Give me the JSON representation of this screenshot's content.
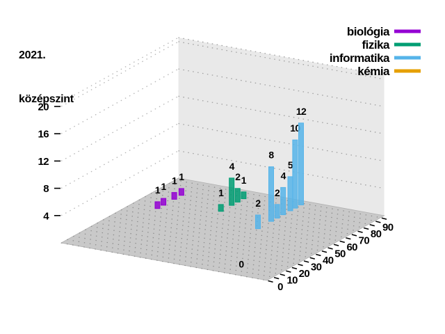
{
  "header": {
    "line1": "2021.",
    "line2": "középszint"
  },
  "chart_data": {
    "type": "bar",
    "projection": "3d",
    "title": "2021. középszint",
    "legend_position": "top-right",
    "score_axis": {
      "ticks": [
        0,
        10,
        20,
        30,
        40,
        50,
        60,
        70,
        80,
        90
      ],
      "minor_step": 5,
      "range": [
        0,
        98
      ]
    },
    "count_axis": {
      "ticks": [
        4,
        8,
        12,
        16,
        20
      ],
      "range": [
        0,
        20.6
      ]
    },
    "series": [
      {
        "name": "biológia",
        "color": "#9400d3",
        "lane": 4,
        "points": [
          {
            "score": 59,
            "count": 1
          },
          {
            "score": 64,
            "count": 1
          },
          {
            "score": 73,
            "count": 1
          },
          {
            "score": 79,
            "count": 1
          }
        ]
      },
      {
        "name": "fizika",
        "color": "#009e73",
        "lane": 3,
        "points": [
          {
            "score": 69,
            "count": 1
          },
          {
            "score": 78,
            "count": 4
          },
          {
            "score": 83,
            "count": 2
          },
          {
            "score": 88,
            "count": 1
          }
        ]
      },
      {
        "name": "informatika",
        "color": "#56b4e9",
        "lane": 2,
        "points": [
          {
            "score": 57,
            "count": 2
          },
          {
            "score": 68,
            "count": 8
          },
          {
            "score": 73,
            "count": 2
          },
          {
            "score": 78,
            "count": 4
          },
          {
            "score": 84,
            "count": 5
          },
          {
            "score": 88,
            "count": 10
          },
          {
            "score": 93,
            "count": 12
          }
        ]
      },
      {
        "name": "kémia",
        "color": "#e69f00",
        "lane": 1,
        "points": [
          {
            "score": 0,
            "count": 0
          }
        ]
      }
    ]
  }
}
